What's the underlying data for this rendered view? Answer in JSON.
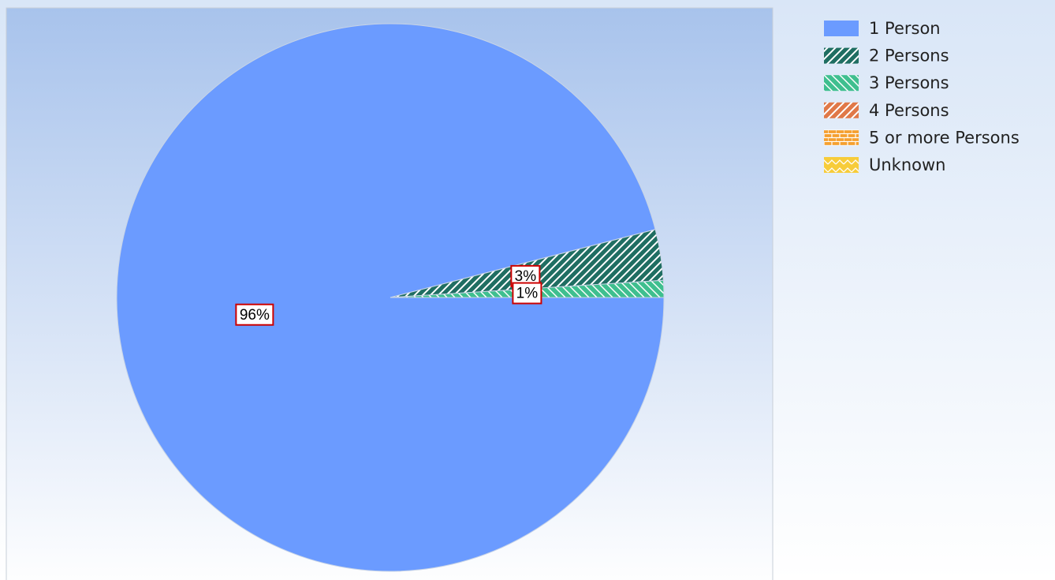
{
  "chart_data": {
    "type": "pie",
    "categories": [
      "1 Person",
      "2 Persons",
      "3 Persons",
      "4 Persons",
      "5 or more Persons",
      "Unknown"
    ],
    "values": [
      96,
      3,
      1,
      0,
      0,
      0
    ],
    "value_labels": [
      "96%",
      "3%",
      "1%",
      null,
      null,
      null
    ],
    "colors": [
      "#6b9bff",
      "#1f6e62",
      "#3fbf8f",
      "#e07848",
      "#f5a030",
      "#f7cc3a"
    ],
    "legend": "right"
  }
}
